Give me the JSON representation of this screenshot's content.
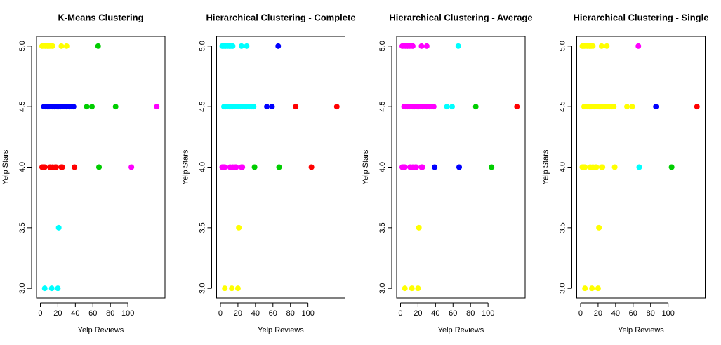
{
  "chart_data": [
    {
      "type": "scatter",
      "title": "K-Means Clustering",
      "x_label": "Yelp Reviews",
      "y_label": "Yelp Stars",
      "xlim": [
        -4.4,
        142.4
      ],
      "ylim": [
        2.92,
        5.08
      ],
      "xticks": [
        0,
        20,
        40,
        60,
        80,
        100
      ],
      "yticks": [
        {
          "value": 3,
          "label": "3.0"
        },
        3.5,
        {
          "value": 4,
          "label": "4.0"
        },
        4.5,
        {
          "value": 5,
          "label": "5.0"
        }
      ],
      "series": [
        {
          "color": "#ffff00",
          "x": [
            2,
            4,
            6,
            8,
            10,
            12,
            14,
            24,
            30
          ],
          "values": [
            5,
            5,
            5,
            5,
            5,
            5,
            5,
            5,
            5
          ]
        },
        {
          "color": "#00cd00",
          "x": [
            66,
            53,
            59,
            86,
            67
          ],
          "values": [
            5,
            4.5,
            4.5,
            4.5,
            4
          ]
        },
        {
          "color": "#0000ff",
          "x": [
            4,
            6,
            8,
            10,
            12,
            14,
            16,
            19,
            21,
            23,
            25,
            28,
            30,
            33,
            36,
            38
          ],
          "values": [
            4.5,
            4.5,
            4.5,
            4.5,
            4.5,
            4.5,
            4.5,
            4.5,
            4.5,
            4.5,
            4.5,
            4.5,
            4.5,
            4.5,
            4.5,
            4.5
          ]
        },
        {
          "color": "#ff00ff",
          "x": [
            133,
            104
          ],
          "values": [
            4.5,
            4
          ]
        },
        {
          "color": "#ff0000",
          "x": [
            2,
            3,
            4,
            5,
            11,
            14,
            17,
            18,
            24,
            25,
            39
          ],
          "values": [
            4,
            4,
            4,
            4,
            4,
            4,
            4,
            4,
            4,
            4,
            4
          ]
        },
        {
          "color": "#00ffff",
          "x": [
            21,
            5,
            13,
            20
          ],
          "values": [
            3.5,
            3,
            3,
            3
          ]
        }
      ]
    },
    {
      "type": "scatter",
      "title": "Hierarchical Clustering - Complete",
      "x_label": "Yelp Reviews",
      "y_label": "Yelp Stars",
      "xlim": [
        -4.4,
        142.4
      ],
      "ylim": [
        2.92,
        5.08
      ],
      "xticks": [
        0,
        20,
        40,
        60,
        80,
        100
      ],
      "yticks": [
        {
          "value": 3,
          "label": "3.0"
        },
        3.5,
        {
          "value": 4,
          "label": "4.0"
        },
        4.5,
        {
          "value": 5,
          "label": "5.0"
        }
      ],
      "series": [
        {
          "color": "#00ffff",
          "x": [
            2,
            4,
            6,
            8,
            10,
            12,
            14,
            24,
            30,
            4,
            6,
            8,
            10,
            12,
            14,
            16,
            19,
            21,
            23,
            25,
            28,
            30,
            33,
            36,
            38
          ],
          "values": [
            5,
            5,
            5,
            5,
            5,
            5,
            5,
            5,
            5,
            4.5,
            4.5,
            4.5,
            4.5,
            4.5,
            4.5,
            4.5,
            4.5,
            4.5,
            4.5,
            4.5,
            4.5,
            4.5,
            4.5,
            4.5,
            4.5
          ]
        },
        {
          "color": "#0000ff",
          "x": [
            66,
            53,
            59
          ],
          "values": [
            5,
            4.5,
            4.5
          ]
        },
        {
          "color": "#ff0000",
          "x": [
            86,
            133,
            104
          ],
          "values": [
            4.5,
            4.5,
            4
          ]
        },
        {
          "color": "#00cd00",
          "x": [
            39,
            67
          ],
          "values": [
            4,
            4
          ]
        },
        {
          "color": "#ff00ff",
          "x": [
            2,
            3,
            4,
            5,
            11,
            14,
            17,
            18,
            24,
            25
          ],
          "values": [
            4,
            4,
            4,
            4,
            4,
            4,
            4,
            4,
            4,
            4
          ]
        },
        {
          "color": "#ffff00",
          "x": [
            21,
            5,
            13,
            20
          ],
          "values": [
            3.5,
            3,
            3,
            3
          ]
        }
      ]
    },
    {
      "type": "scatter",
      "title": "Hierarchical Clustering - Average",
      "x_label": "Yelp Reviews",
      "y_label": "Yelp Stars",
      "xlim": [
        -4.4,
        142.4
      ],
      "ylim": [
        2.92,
        5.08
      ],
      "xticks": [
        0,
        20,
        40,
        60,
        80,
        100
      ],
      "yticks": [
        {
          "value": 3,
          "label": "3.0"
        },
        3.5,
        {
          "value": 4,
          "label": "4.0"
        },
        4.5,
        {
          "value": 5,
          "label": "5.0"
        }
      ],
      "series": [
        {
          "color": "#ff00ff",
          "x": [
            2,
            4,
            6,
            8,
            10,
            12,
            14,
            24,
            30,
            4,
            6,
            8,
            10,
            12,
            14,
            16,
            19,
            21,
            23,
            25,
            28,
            30,
            33,
            36,
            38,
            2,
            3,
            4,
            5,
            11,
            14,
            17,
            18,
            24,
            25
          ],
          "values": [
            5,
            5,
            5,
            5,
            5,
            5,
            5,
            5,
            5,
            4.5,
            4.5,
            4.5,
            4.5,
            4.5,
            4.5,
            4.5,
            4.5,
            4.5,
            4.5,
            4.5,
            4.5,
            4.5,
            4.5,
            4.5,
            4.5,
            4,
            4,
            4,
            4,
            4,
            4,
            4,
            4,
            4,
            4
          ]
        },
        {
          "color": "#00ffff",
          "x": [
            66,
            53,
            59
          ],
          "values": [
            5,
            4.5,
            4.5
          ]
        },
        {
          "color": "#00cd00",
          "x": [
            86,
            104
          ],
          "values": [
            4.5,
            4
          ]
        },
        {
          "color": "#ff0000",
          "x": [
            133
          ],
          "values": [
            4.5
          ]
        },
        {
          "color": "#0000ff",
          "x": [
            39,
            67
          ],
          "values": [
            4,
            4
          ]
        },
        {
          "color": "#ffff00",
          "x": [
            21,
            5,
            13,
            20
          ],
          "values": [
            3.5,
            3,
            3,
            3
          ]
        }
      ]
    },
    {
      "type": "scatter",
      "title": "Hierarchical Clustering - Single",
      "x_label": "Yelp Reviews",
      "y_label": "Yelp Stars",
      "xlim": [
        -4.4,
        142.4
      ],
      "ylim": [
        2.92,
        5.08
      ],
      "xticks": [
        0,
        20,
        40,
        60,
        80,
        100
      ],
      "yticks": [
        {
          "value": 3,
          "label": "3.0"
        },
        3.5,
        {
          "value": 4,
          "label": "4.0"
        },
        4.5,
        {
          "value": 5,
          "label": "5.0"
        }
      ],
      "series": [
        {
          "color": "#ffff00",
          "x": [
            2,
            4,
            6,
            8,
            10,
            12,
            14,
            24,
            30,
            4,
            6,
            8,
            10,
            12,
            14,
            16,
            19,
            21,
            23,
            25,
            28,
            30,
            33,
            36,
            38,
            53,
            59,
            2,
            3,
            4,
            5,
            11,
            14,
            17,
            18,
            24,
            25,
            39,
            21,
            5,
            13,
            20
          ],
          "values": [
            5,
            5,
            5,
            5,
            5,
            5,
            5,
            5,
            5,
            4.5,
            4.5,
            4.5,
            4.5,
            4.5,
            4.5,
            4.5,
            4.5,
            4.5,
            4.5,
            4.5,
            4.5,
            4.5,
            4.5,
            4.5,
            4.5,
            4.5,
            4.5,
            4,
            4,
            4,
            4,
            4,
            4,
            4,
            4,
            4,
            4,
            4,
            3.5,
            3,
            3,
            3
          ]
        },
        {
          "color": "#ff00ff",
          "x": [
            66
          ],
          "values": [
            5
          ]
        },
        {
          "color": "#0000ff",
          "x": [
            86
          ],
          "values": [
            4.5
          ]
        },
        {
          "color": "#ff0000",
          "x": [
            133
          ],
          "values": [
            4.5
          ]
        },
        {
          "color": "#00ffff",
          "x": [
            67
          ],
          "values": [
            4
          ]
        },
        {
          "color": "#00cd00",
          "x": [
            104
          ],
          "values": [
            4
          ]
        }
      ]
    }
  ]
}
